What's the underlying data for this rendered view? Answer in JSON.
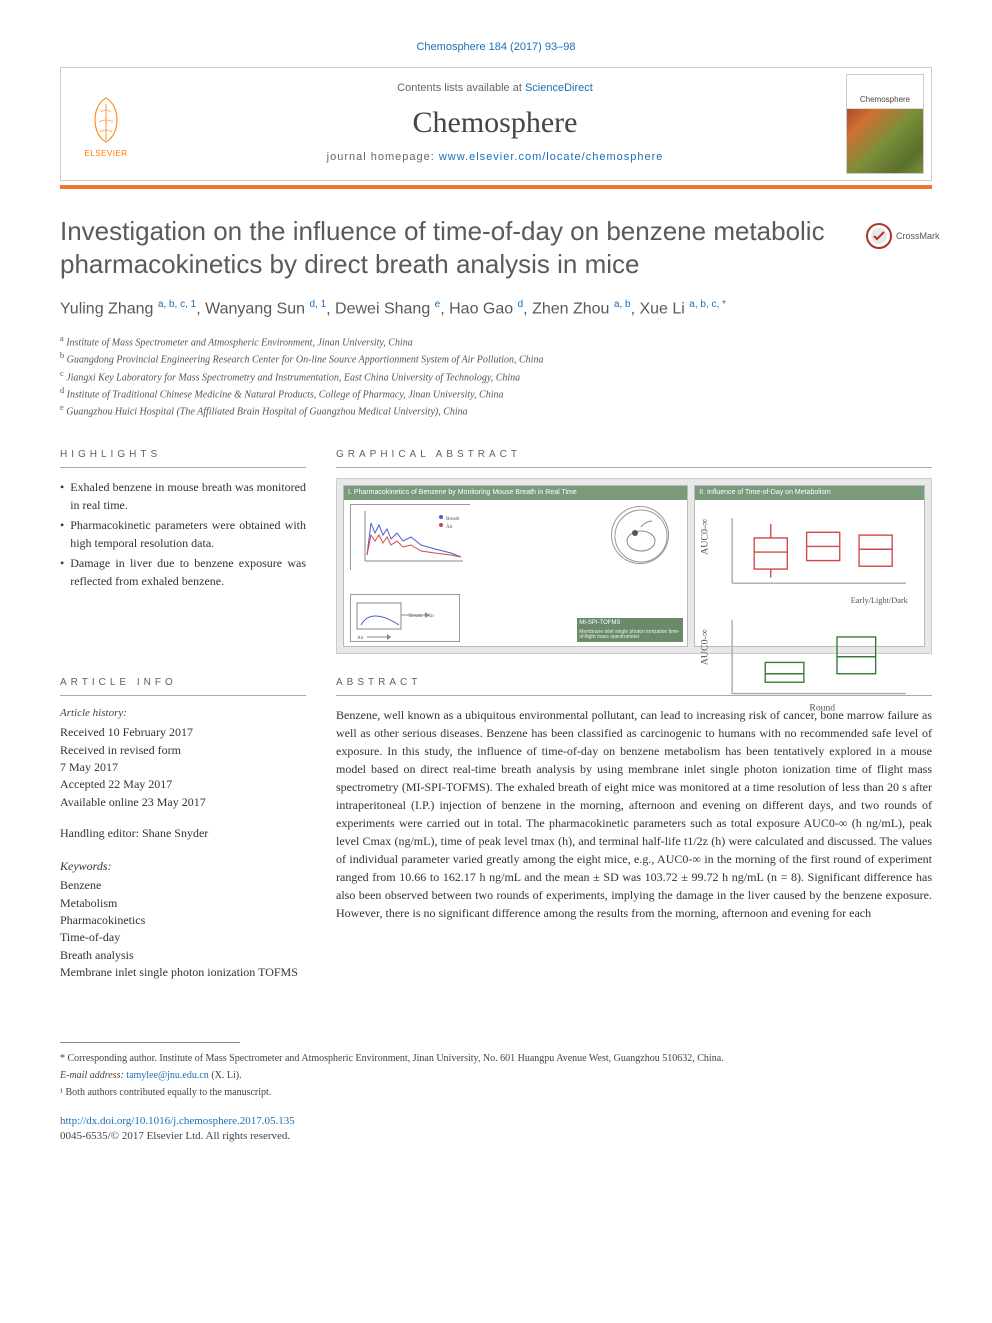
{
  "citation": "Chemosphere 184 (2017) 93–98",
  "masthead": {
    "publisher_label": "ELSEVIER",
    "publisher_color": "#ff7a00",
    "contents_text": "Contents lists available at ",
    "contents_link": "ScienceDirect",
    "journal_name": "Chemosphere",
    "homepage_label": "journal homepage: ",
    "homepage_url": "www.elsevier.com/locate/chemosphere",
    "cover_label": "Chemosphere"
  },
  "orange_bar_color": "#e8792e",
  "title": "Investigation on the influence of time-of-day on benzene metabolic pharmacokinetics by direct breath analysis in mice",
  "crossmark_label": "CrossMark",
  "authors_html": "Yuling Zhang <sup>a, b, c, 1</sup>, Wanyang Sun <sup>d, 1</sup>, Dewei Shang <sup>e</sup>, Hao Gao <sup>d</sup>, Zhen Zhou <sup>a, b</sup>, Xue Li <sup>a, b, c, *</sup>",
  "affiliations": [
    {
      "sup": "a",
      "text": "Institute of Mass Spectrometer and Atmospheric Environment, Jinan University, China"
    },
    {
      "sup": "b",
      "text": "Guangdong Provincial Engineering Research Center for On-line Source Apportionment System of Air Pollution, China"
    },
    {
      "sup": "c",
      "text": "Jiangxi Key Laboratory for Mass Spectrometry and Instrumentation, East China University of Technology, China"
    },
    {
      "sup": "d",
      "text": "Institute of Traditional Chinese Medicine & Natural Products, College of Pharmacy, Jinan University, China"
    },
    {
      "sup": "e",
      "text": "Guangzhou Huici Hospital (The Affiliated Brain Hospital of Guangzhou Medical University), China"
    }
  ],
  "headings": {
    "highlights": "HIGHLIGHTS",
    "graphical_abstract": "GRAPHICAL ABSTRACT",
    "article_info": "ARTICLE INFO",
    "abstract": "ABSTRACT"
  },
  "highlights": [
    "Exhaled benzene in mouse breath was monitored in real time.",
    "Pharmacokinetic parameters were obtained with high temporal resolution data.",
    "Damage in liver due to benzene exposure was reflected from exhaled benzene."
  ],
  "graphical_abstract": {
    "panel1_title": "I. Pharmacokinetics of Benzene by Monitoring Mouse Breath in Real Time",
    "panel2_title": "II. Influence of Time-of-Day on Metabolism",
    "instrument_label": "MI-SPI-TOFMS",
    "panel_title_bg": "#7a9a7a",
    "box_bg": "#e8e8e8"
  },
  "article_info": {
    "history_label": "Article history:",
    "received": "Received 10 February 2017",
    "revised_1": "Received in revised form",
    "revised_2": "7 May 2017",
    "accepted": "Accepted 22 May 2017",
    "online": "Available online 23 May 2017",
    "handling_editor": "Handling editor: Shane Snyder",
    "keywords_label": "Keywords:",
    "keywords": [
      "Benzene",
      "Metabolism",
      "Pharmacokinetics",
      "Time-of-day",
      "Breath analysis",
      "Membrane inlet single photon ionization TOFMS"
    ]
  },
  "abstract": "Benzene, well known as a ubiquitous environmental pollutant, can lead to increasing risk of cancer, bone marrow failure as well as other serious diseases. Benzene has been classified as carcinogenic to humans with no recommended safe level of exposure. In this study, the influence of time-of-day on benzene metabolism has been tentatively explored in a mouse model based on direct real-time breath analysis by using membrane inlet single photon ionization time of flight mass spectrometry (MI-SPI-TOFMS). The exhaled breath of eight mice was monitored at a time resolution of less than 20 s after intraperitoneal (I.P.) injection of benzene in the morning, afternoon and evening on different days, and two rounds of experiments were carried out in total. The pharmacokinetic parameters such as total exposure AUC0-∞ (h ng/mL), peak level Cmax (ng/mL), time of peak level tmax (h), and terminal half-life t1/2z (h) were calculated and discussed. The values of individual parameter varied greatly among the eight mice, e.g., AUC0-∞ in the morning of the first round of experiment ranged from 10.66 to 162.17 h ng/mL and the mean ± SD was 103.72 ± 99.72 h ng/mL (n = 8). Significant difference has also been observed between two rounds of experiments, implying the damage in the liver caused by the benzene exposure. However, there is no significant difference among the results from the morning, afternoon and evening for each",
  "footnotes": {
    "corresponding": "* Corresponding author. Institute of Mass Spectrometer and Atmospheric Environment, Jinan University, No. 601 Huangpu Avenue West, Guangzhou 510632, China.",
    "email_label": "E-mail address: ",
    "email": "tamylee@jnu.edu.cn",
    "email_name": " (X. Li).",
    "equal": "¹ Both authors contributed equally to the manuscript."
  },
  "doi": {
    "url": "http://dx.doi.org/10.1016/j.chemosphere.2017.05.135",
    "issn_copyright": "0045-6535/© 2017 Elsevier Ltd. All rights reserved."
  },
  "link_color": "#1a6fb7"
}
